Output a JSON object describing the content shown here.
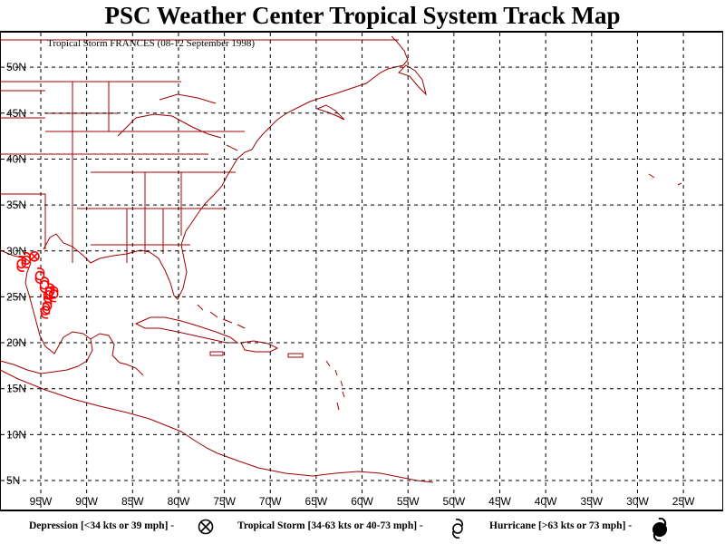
{
  "title": "PSC Weather Center Tropical System Track Map",
  "storm_label": "Tropical Storm FRANCES (08-12 September 1998)",
  "colors": {
    "coast": "#a00000",
    "grid": "#000000",
    "track": "#ff0000"
  },
  "lat_labels": [
    "50N",
    "45N",
    "40N",
    "35N",
    "30N",
    "25N",
    "20N",
    "15N",
    "10N",
    "5N"
  ],
  "lon_labels": [
    "95W",
    "90W",
    "85W",
    "80W",
    "75W",
    "70W",
    "65W",
    "60W",
    "55W",
    "50W",
    "45W",
    "40W",
    "35W",
    "30W",
    "25W"
  ],
  "legend": {
    "depression": "Depression [<34 kts or 39 mph] -",
    "tropical_storm": "Tropical Storm [34-63 kts or 40-73 mph] -",
    "hurricane": "Hurricane [>63 kts or 73 mph] -"
  },
  "track": [
    {
      "lat": 23.5,
      "lon": 94.5,
      "type": "tropical-storm"
    },
    {
      "lat": 24.0,
      "lon": 94.3,
      "type": "tropical-storm"
    },
    {
      "lat": 25.2,
      "lon": 94.2,
      "type": "tropical-storm"
    },
    {
      "lat": 25.6,
      "lon": 94.0,
      "type": "tropical-storm"
    },
    {
      "lat": 25.3,
      "lon": 93.6,
      "type": "tropical-storm"
    },
    {
      "lat": 26.3,
      "lon": 94.6,
      "type": "tropical-storm"
    },
    {
      "lat": 27.3,
      "lon": 95.1,
      "type": "tropical-storm"
    },
    {
      "lat": 28.6,
      "lon": 97.1,
      "type": "tropical-storm"
    },
    {
      "lat": 29.0,
      "lon": 96.6,
      "type": "tropical-storm"
    },
    {
      "lat": 29.4,
      "lon": 95.7,
      "type": "depression"
    }
  ]
}
